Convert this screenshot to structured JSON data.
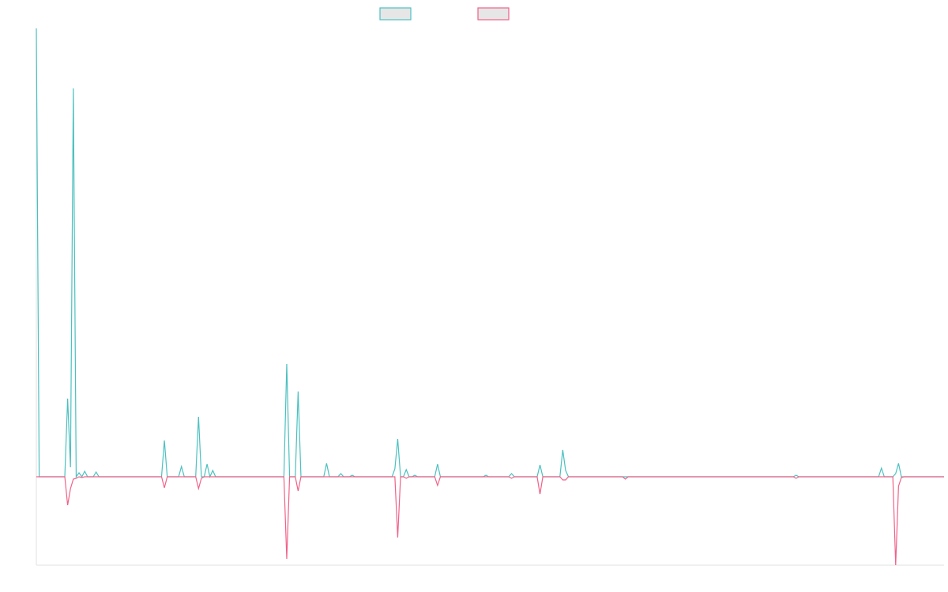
{
  "chart_data": {
    "type": "line",
    "series": [
      {
        "color": "#4bc0c0",
        "values": [
          568,
          0,
          0,
          0,
          0,
          0,
          0,
          0,
          0,
          0,
          0,
          99,
          12,
          492,
          0,
          5,
          0,
          7,
          0,
          0,
          0,
          6,
          0,
          0,
          0,
          0,
          0,
          0,
          0,
          0,
          0,
          0,
          0,
          0,
          0,
          0,
          0,
          0,
          0,
          0,
          0,
          0,
          0,
          0,
          0,
          46,
          0,
          0,
          0,
          0,
          0,
          13,
          0,
          0,
          0,
          0,
          0,
          76,
          0,
          0,
          16,
          0,
          8,
          0,
          0,
          0,
          0,
          0,
          0,
          0,
          0,
          0,
          0,
          0,
          0,
          0,
          0,
          0,
          0,
          0,
          0,
          0,
          0,
          0,
          0,
          0,
          0,
          0,
          143,
          0,
          0,
          0,
          108,
          0,
          0,
          0,
          0,
          0,
          0,
          0,
          0,
          0,
          17,
          0,
          0,
          0,
          0,
          4,
          0,
          0,
          0,
          2,
          0,
          0,
          0,
          0,
          0,
          0,
          0,
          0,
          0,
          0,
          0,
          0,
          0,
          0,
          10,
          48,
          0,
          0,
          9,
          0,
          0,
          2,
          0,
          0,
          0,
          0,
          0,
          0,
          0,
          16,
          0,
          0,
          0,
          0,
          0,
          0,
          0,
          0,
          0,
          0,
          0,
          0,
          0,
          0,
          0,
          0,
          2,
          0,
          0,
          0,
          0,
          0,
          0,
          0,
          0,
          4,
          0,
          0,
          0,
          0,
          0,
          0,
          0,
          0,
          0,
          15,
          0,
          0,
          0,
          0,
          0,
          0,
          0,
          34,
          8,
          0,
          0,
          0,
          0,
          0,
          0,
          0,
          0,
          0,
          0,
          0,
          0,
          0,
          0,
          0,
          0,
          0,
          0,
          0,
          0,
          0,
          0,
          0,
          0,
          0,
          0,
          0,
          0,
          0,
          0,
          0,
          0,
          0,
          0,
          0,
          0,
          0,
          0,
          0,
          0,
          0,
          0,
          0,
          0,
          0,
          0,
          0,
          0,
          0,
          0,
          0,
          0,
          0,
          0,
          0,
          0,
          0,
          0,
          0,
          0,
          0,
          0,
          0,
          0,
          0,
          0,
          0,
          0,
          0,
          0,
          0,
          0,
          0,
          0,
          0,
          0,
          0,
          0,
          0,
          0,
          2,
          0,
          0,
          0,
          0,
          0,
          0,
          0,
          0,
          0,
          0,
          0,
          0,
          0,
          0,
          0,
          0,
          0,
          0,
          0,
          0,
          0,
          0,
          0,
          0,
          0,
          0,
          0,
          0,
          0,
          11,
          0,
          0,
          0,
          0,
          4,
          17,
          0,
          0,
          0,
          0,
          0,
          0,
          0,
          0,
          0,
          0,
          0,
          0,
          0,
          0,
          0,
          0
        ]
      },
      {
        "color": "#f06288",
        "values": [
          0,
          0,
          0,
          0,
          0,
          0,
          0,
          0,
          0,
          0,
          0,
          -36,
          -15,
          -3,
          -2,
          0,
          -1,
          0,
          0,
          0,
          0,
          0,
          0,
          0,
          0,
          0,
          0,
          0,
          0,
          0,
          0,
          0,
          0,
          0,
          0,
          0,
          0,
          0,
          0,
          0,
          0,
          0,
          0,
          0,
          0,
          -14,
          0,
          0,
          0,
          0,
          0,
          0,
          0,
          0,
          0,
          0,
          0,
          -15,
          -2,
          0,
          0,
          0,
          0,
          0,
          0,
          0,
          0,
          0,
          0,
          0,
          0,
          0,
          0,
          0,
          0,
          0,
          0,
          0,
          0,
          0,
          0,
          0,
          0,
          0,
          0,
          0,
          0,
          0,
          -104,
          0,
          0,
          0,
          -18,
          0,
          0,
          0,
          0,
          0,
          0,
          0,
          0,
          0,
          0,
          0,
          0,
          0,
          0,
          0,
          0,
          0,
          0,
          0,
          0,
          0,
          0,
          0,
          0,
          0,
          0,
          0,
          0,
          0,
          0,
          0,
          0,
          0,
          0,
          -77,
          0,
          0,
          -2,
          0,
          0,
          0,
          0,
          0,
          0,
          0,
          0,
          0,
          0,
          -11,
          0,
          0,
          0,
          0,
          0,
          0,
          0,
          0,
          0,
          0,
          0,
          0,
          0,
          0,
          0,
          0,
          0,
          0,
          0,
          0,
          0,
          0,
          0,
          0,
          0,
          -2,
          0,
          0,
          0,
          0,
          0,
          0,
          0,
          0,
          0,
          -22,
          0,
          0,
          0,
          0,
          0,
          0,
          0,
          -4,
          -4,
          0,
          0,
          0,
          0,
          0,
          0,
          0,
          0,
          0,
          0,
          0,
          0,
          0,
          0,
          0,
          0,
          0,
          0,
          0,
          0,
          -3,
          0,
          0,
          0,
          0,
          0,
          0,
          0,
          0,
          0,
          0,
          0,
          0,
          0,
          0,
          0,
          0,
          0,
          0,
          0,
          0,
          0,
          0,
          0,
          0,
          0,
          0,
          0,
          0,
          0,
          0,
          0,
          0,
          0,
          0,
          0,
          0,
          0,
          0,
          0,
          0,
          0,
          0,
          0,
          0,
          0,
          0,
          0,
          0,
          0,
          0,
          0,
          0,
          0,
          0,
          0,
          0,
          0,
          0,
          0,
          -2,
          0,
          0,
          0,
          0,
          0,
          0,
          0,
          0,
          0,
          0,
          0,
          0,
          0,
          0,
          0,
          0,
          0,
          0,
          0,
          0,
          0,
          0,
          0,
          0,
          0,
          0,
          0,
          0,
          0,
          0,
          0,
          0,
          0,
          0,
          -112,
          -12,
          -1,
          0,
          0,
          0,
          0,
          0,
          0,
          0,
          0,
          0,
          0,
          0,
          0,
          0,
          0,
          0
        ]
      }
    ],
    "ylim": [
      -112,
      568
    ]
  }
}
